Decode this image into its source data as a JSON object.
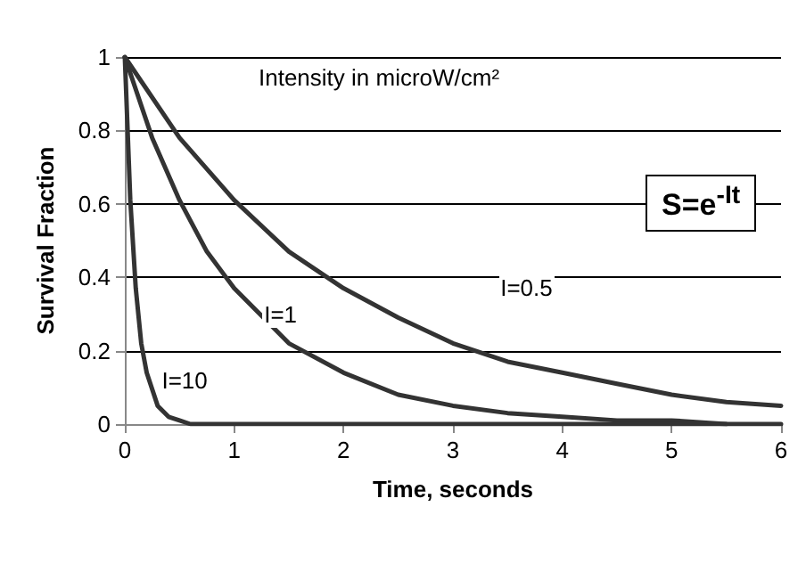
{
  "chart_data": {
    "type": "line",
    "xlabel": "Time, seconds",
    "ylabel": "Survival Fraction",
    "xlim": [
      0,
      6
    ],
    "xticks": [
      0,
      1,
      2,
      3,
      4,
      5,
      6
    ],
    "ylim": [
      0,
      1
    ],
    "yticks": [
      0,
      0.2,
      0.4,
      0.6,
      0.8,
      1
    ],
    "grid": "y",
    "marker": "none",
    "line_style": "solid",
    "series": [
      {
        "name": "I=0.5",
        "color": "#333333",
        "x": [
          0,
          0.5,
          1,
          1.5,
          2,
          2.5,
          3,
          3.5,
          4,
          4.5,
          5,
          5.5,
          6
        ],
        "values": [
          1,
          0.78,
          0.61,
          0.47,
          0.37,
          0.29,
          0.22,
          0.17,
          0.14,
          0.11,
          0.08,
          0.06,
          0.05
        ]
      },
      {
        "name": "I=1",
        "color": "#333333",
        "x": [
          0,
          0.25,
          0.5,
          0.75,
          1,
          1.5,
          2,
          2.5,
          3,
          3.5,
          4,
          4.5,
          5,
          5.5
        ],
        "values": [
          1,
          0.78,
          0.61,
          0.47,
          0.37,
          0.22,
          0.14,
          0.08,
          0.05,
          0.03,
          0.02,
          0.01,
          0.01,
          0
        ]
      },
      {
        "name": "I=10",
        "color": "#333333",
        "x": [
          0,
          0.05,
          0.1,
          0.15,
          0.2,
          0.3,
          0.4,
          0.5,
          0.6,
          1,
          6
        ],
        "values": [
          1,
          0.61,
          0.37,
          0.22,
          0.14,
          0.05,
          0.02,
          0.01,
          0,
          0,
          0
        ]
      }
    ],
    "annotations": [
      "Intensity in microW/cm²",
      "S=e$^{-It}$"
    ]
  }
}
